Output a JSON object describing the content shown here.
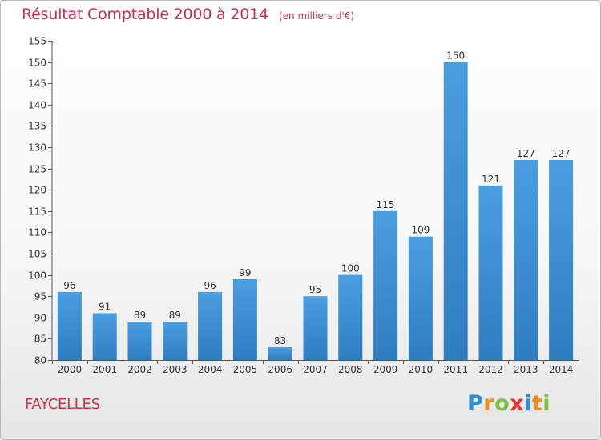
{
  "chart_data": {
    "type": "bar",
    "title": "Résultat Comptable 2000 à 2014",
    "subtitle": "(en milliers d'€)",
    "categories": [
      "2000",
      "2001",
      "2002",
      "2003",
      "2004",
      "2005",
      "2006",
      "2007",
      "2008",
      "2009",
      "2010",
      "2011",
      "2012",
      "2013",
      "2014"
    ],
    "values": [
      96,
      91,
      89,
      89,
      96,
      99,
      83,
      95,
      100,
      115,
      109,
      150,
      121,
      127,
      127
    ],
    "ylim": [
      80,
      155
    ],
    "yticks": [
      80,
      85,
      90,
      95,
      100,
      105,
      110,
      115,
      120,
      125,
      130,
      135,
      140,
      145,
      150,
      155
    ],
    "grid": false,
    "legend": "none",
    "bar_color": "#4a9fe0",
    "bar_color_dark": "#2e7dc0"
  },
  "footer": {
    "commune": "FAYCELLES",
    "logo_letters": [
      {
        "char": "P",
        "color": "#2c8fd6"
      },
      {
        "char": "r",
        "color": "#f28c1e"
      },
      {
        "char": "o",
        "color": "#7cc242"
      },
      {
        "char": "x",
        "color": "#e8342c"
      },
      {
        "char": "i",
        "color": "#2c8fd6"
      },
      {
        "char": "t",
        "color": "#f28c1e"
      },
      {
        "char": "i",
        "color": "#7cc242"
      }
    ]
  },
  "colors": {
    "title": "#c8334a",
    "axis": "#555555"
  }
}
